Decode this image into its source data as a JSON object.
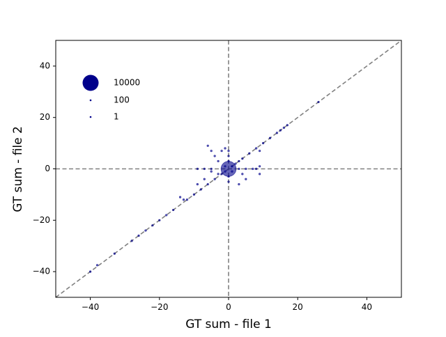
{
  "chart_data": {
    "type": "scatter",
    "title": "",
    "xlabel": "GT sum - file 1",
    "ylabel": "GT sum - file 2",
    "xlim": [
      -50,
      50
    ],
    "ylim": [
      -50,
      50
    ],
    "xticks": [
      -40,
      -20,
      0,
      20,
      40
    ],
    "yticks": [
      -40,
      -20,
      0,
      20,
      40
    ],
    "xtick_labels": [
      "−40",
      "−20",
      "0",
      "20",
      "40"
    ],
    "ytick_labels": [
      "−40",
      "−20",
      "0",
      "20",
      "40"
    ],
    "grid": false,
    "reference_lines": [
      "x=0",
      "y=0",
      "y=x"
    ],
    "marker_color": "#00008b",
    "reference_line_color": "#808080",
    "marker_size_encoding": "count",
    "legend": {
      "placement": "upper-left",
      "entries": [
        {
          "label": "10000",
          "count": 10000
        },
        {
          "label": "100",
          "count": 100
        },
        {
          "label": "1",
          "count": 1
        }
      ]
    },
    "series": [
      {
        "points": [
          {
            "x": 0,
            "y": 0,
            "count": 9000
          },
          {
            "x": -40,
            "y": -40,
            "count": 1
          },
          {
            "x": -38,
            "y": -37.5,
            "count": 1
          },
          {
            "x": -33,
            "y": -33,
            "count": 1
          },
          {
            "x": -28,
            "y": -28,
            "count": 1
          },
          {
            "x": -26,
            "y": -26,
            "count": 2
          },
          {
            "x": -24,
            "y": -24,
            "count": 2
          },
          {
            "x": -22,
            "y": -22,
            "count": 2
          },
          {
            "x": -20,
            "y": -20,
            "count": 3
          },
          {
            "x": -18,
            "y": -18,
            "count": 3
          },
          {
            "x": -16,
            "y": -16,
            "count": 4
          },
          {
            "x": -14,
            "y": -11,
            "count": 2
          },
          {
            "x": -13,
            "y": -12,
            "count": 4
          },
          {
            "x": -12,
            "y": -12,
            "count": 5
          },
          {
            "x": -10,
            "y": -10,
            "count": 6
          },
          {
            "x": -9,
            "y": -6,
            "count": 3
          },
          {
            "x": -8,
            "y": -8,
            "count": 8
          },
          {
            "x": -7,
            "y": -4,
            "count": 4
          },
          {
            "x": -6,
            "y": -6,
            "count": 10
          },
          {
            "x": -5,
            "y": 0,
            "count": 3
          },
          {
            "x": -4,
            "y": -4,
            "count": 15
          },
          {
            "x": -3,
            "y": -2,
            "count": 20
          },
          {
            "x": -2,
            "y": -2,
            "count": 40
          },
          {
            "x": -1,
            "y": -1,
            "count": 80
          },
          {
            "x": -6,
            "y": 9,
            "count": 1
          },
          {
            "x": -5,
            "y": 7,
            "count": 1
          },
          {
            "x": -4,
            "y": 5,
            "count": 1
          },
          {
            "x": -3,
            "y": 3,
            "count": 2
          },
          {
            "x": -2,
            "y": 7,
            "count": 2
          },
          {
            "x": -1,
            "y": 8,
            "count": 2
          },
          {
            "x": 0,
            "y": 7,
            "count": 3
          },
          {
            "x": 0,
            "y": 5,
            "count": 4
          },
          {
            "x": 0,
            "y": 3,
            "count": 10
          },
          {
            "x": -1,
            "y": 1,
            "count": 40
          },
          {
            "x": 1,
            "y": -1,
            "count": 40
          },
          {
            "x": 0,
            "y": -3,
            "count": 10
          },
          {
            "x": 0,
            "y": -5,
            "count": 3
          },
          {
            "x": 3,
            "y": -6,
            "count": 1
          },
          {
            "x": 5,
            "y": -4,
            "count": 1
          },
          {
            "x": 4,
            "y": -2,
            "count": 2
          },
          {
            "x": 3,
            "y": 0,
            "count": 5
          },
          {
            "x": 5,
            "y": 0,
            "count": 3
          },
          {
            "x": 7,
            "y": 0,
            "count": 3
          },
          {
            "x": 8,
            "y": 0,
            "count": 2
          },
          {
            "x": 9,
            "y": -2,
            "count": 1
          },
          {
            "x": 9,
            "y": 1,
            "count": 2
          },
          {
            "x": -5,
            "y": -1,
            "count": 3
          },
          {
            "x": -7,
            "y": 0,
            "count": 2
          },
          {
            "x": -9,
            "y": 0,
            "count": 2
          },
          {
            "x": 1,
            "y": 1,
            "count": 80
          },
          {
            "x": 2,
            "y": 2,
            "count": 40
          },
          {
            "x": 3,
            "y": 3,
            "count": 20
          },
          {
            "x": 4,
            "y": 4,
            "count": 15
          },
          {
            "x": 6,
            "y": 6,
            "count": 10
          },
          {
            "x": 8,
            "y": 8,
            "count": 8
          },
          {
            "x": 9,
            "y": 7,
            "count": 3
          },
          {
            "x": 10,
            "y": 10,
            "count": 6
          },
          {
            "x": 12,
            "y": 12,
            "count": 5
          },
          {
            "x": 14,
            "y": 14,
            "count": 3
          },
          {
            "x": 15,
            "y": 15,
            "count": 3
          },
          {
            "x": 16,
            "y": 16,
            "count": 2
          },
          {
            "x": 17,
            "y": 17,
            "count": 2
          },
          {
            "x": 26,
            "y": 26,
            "count": 1
          }
        ]
      }
    ]
  }
}
